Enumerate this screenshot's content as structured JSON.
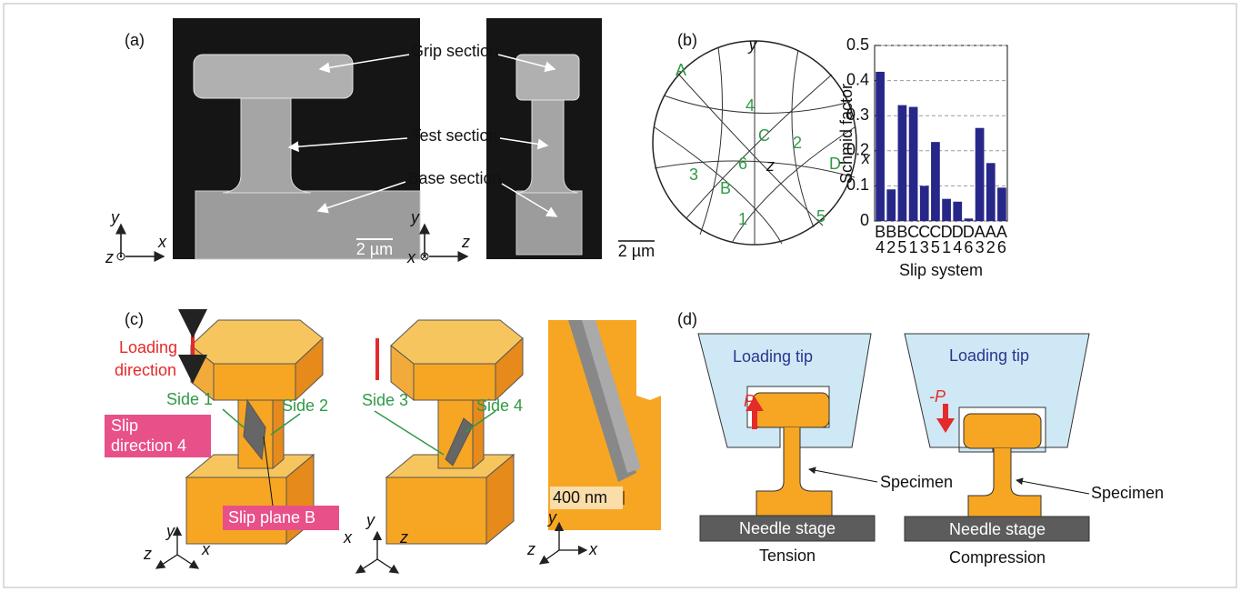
{
  "panel_a": {
    "label": "(a)",
    "annotations": [
      "Grip section",
      "Test section",
      "Base section"
    ],
    "scale_bars": [
      "2 µm",
      "2 µm"
    ],
    "axes_left": [
      "y",
      "x",
      "z"
    ],
    "axes_right": [
      "y",
      "z",
      "x"
    ]
  },
  "panel_b": {
    "label": "(b)",
    "axes": [
      "y",
      "x",
      "z"
    ],
    "poles": [
      "A",
      "4",
      "C",
      "2",
      "D",
      "6",
      "3",
      "B",
      "1",
      "5"
    ]
  },
  "chart_data": {
    "type": "bar",
    "categories": [
      "B4",
      "B2",
      "B5",
      "C1",
      "C3",
      "C5",
      "D1",
      "D4",
      "D6",
      "A3",
      "A2",
      "A6"
    ],
    "values": [
      0.425,
      0.09,
      0.33,
      0.325,
      0.1,
      0.225,
      0.063,
      0.055,
      0.007,
      0.265,
      0.165,
      0.095
    ],
    "color": "#27278a",
    "ylim": [
      0,
      0.5
    ],
    "yticks": [
      0,
      0.1,
      0.2,
      0.3,
      0.4,
      0.5
    ],
    "grid": true,
    "ylabel": "Schmid factor",
    "xlabel": "Slip system"
  },
  "panel_c": {
    "label": "(c)",
    "loading_direction": [
      "Loading",
      "direction"
    ],
    "sides": [
      "Side 1",
      "Side 2",
      "Side 3",
      "Side 4"
    ],
    "slip_direction": [
      "Slip",
      "direction 4"
    ],
    "slip_plane": "Slip plane B",
    "scale_bar": "400 nm",
    "axes": [
      [
        "y",
        "z",
        "x"
      ],
      [
        "y",
        "x",
        "z"
      ],
      [
        "y",
        "z",
        "x"
      ]
    ]
  },
  "panel_d": {
    "label": "(d)",
    "tension": {
      "tip": "Loading tip",
      "load": "P",
      "specimen": "Specimen",
      "stage": "Needle stage",
      "mode": "Tension"
    },
    "compression": {
      "tip": "Loading tip",
      "load": "-P",
      "specimen": "Specimen",
      "stage": "Needle stage",
      "mode": "Compression"
    }
  }
}
